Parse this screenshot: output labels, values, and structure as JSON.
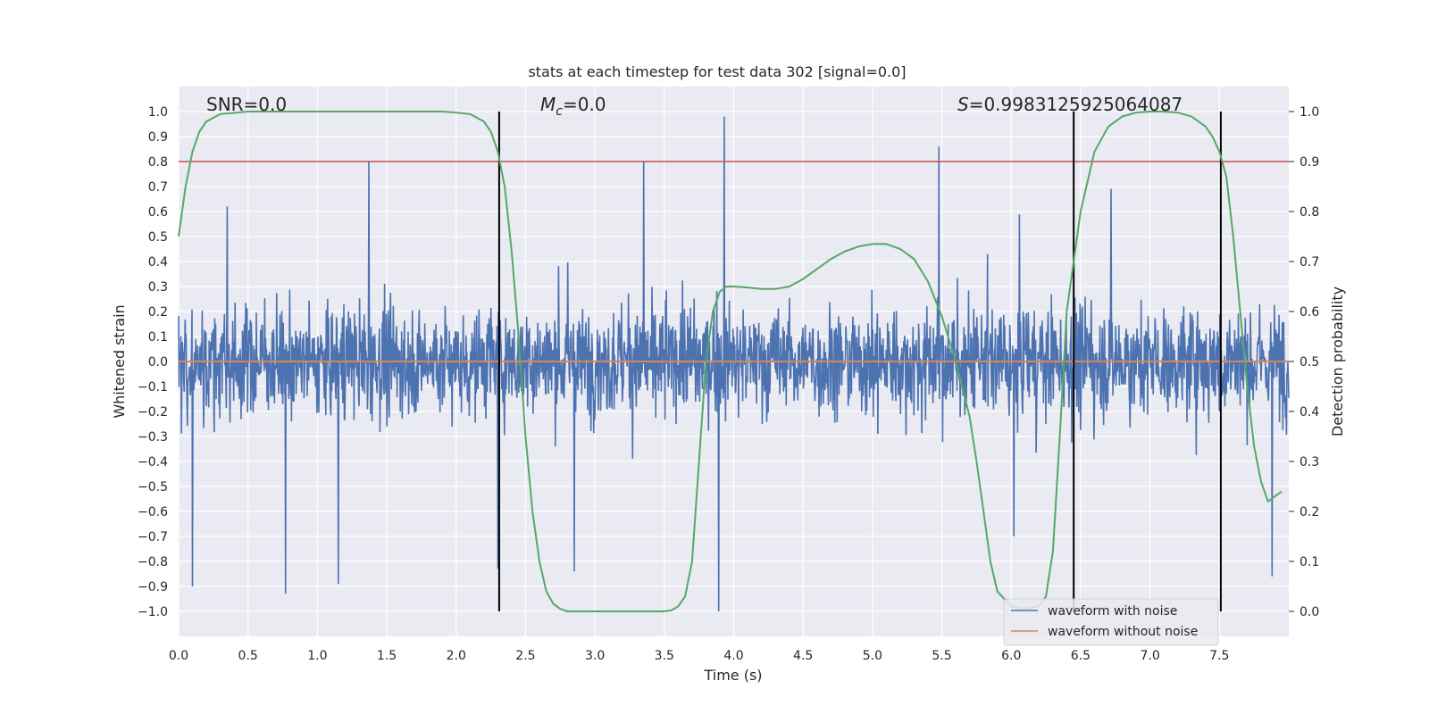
{
  "chart_data": {
    "type": "line",
    "title": "stats at each timestep for test data 302 [signal=0.0]",
    "xlabel": "Time (s)",
    "ylabel": "Whitened strain",
    "y2label": "Detection probability",
    "xlim": [
      0.0,
      8.0
    ],
    "ylim": [
      -1.1,
      1.1
    ],
    "y2lim": [
      -0.05,
      1.05
    ],
    "xticks": [
      0.0,
      0.5,
      1.0,
      1.5,
      2.0,
      2.5,
      3.0,
      3.5,
      4.0,
      4.5,
      5.0,
      5.5,
      6.0,
      6.5,
      7.0,
      7.5
    ],
    "xtick_labels": [
      "0.0",
      "0.5",
      "1.0",
      "1.5",
      "2.0",
      "2.5",
      "3.0",
      "3.5",
      "4.0",
      "4.5",
      "5.0",
      "5.5",
      "6.0",
      "6.5",
      "7.0",
      "7.5"
    ],
    "yticks": [
      -1.0,
      -0.9,
      -0.8,
      -0.7,
      -0.6,
      -0.5,
      -0.4,
      -0.3,
      -0.2,
      -0.1,
      0.0,
      0.1,
      0.2,
      0.3,
      0.4,
      0.5,
      0.6,
      0.7,
      0.8,
      0.9,
      1.0
    ],
    "ytick_labels": [
      "−1.0",
      "−0.9",
      "−0.8",
      "−0.7",
      "−0.6",
      "−0.5",
      "−0.4",
      "−0.3",
      "−0.2",
      "−0.1",
      "0.0",
      "0.1",
      "0.2",
      "0.3",
      "0.4",
      "0.5",
      "0.6",
      "0.7",
      "0.8",
      "0.9",
      "1.0"
    ],
    "y2ticks": [
      0.0,
      0.1,
      0.2,
      0.3,
      0.4,
      0.5,
      0.6,
      0.7,
      0.8,
      0.9,
      1.0
    ],
    "y2tick_labels": [
      "0.0",
      "0.1",
      "0.2",
      "0.3",
      "0.4",
      "0.5",
      "0.6",
      "0.7",
      "0.8",
      "0.9",
      "1.0"
    ],
    "annotations": {
      "snr": "SNR=0.0",
      "mc_symbol": "M",
      "mc_sub": "c",
      "mc_value": "=0.0",
      "s_symbol": "S",
      "s_value": "=0.9983125925064087"
    },
    "noise_envelope": {
      "approx_bulk_amplitude": 0.38,
      "spikes": [
        {
          "t": 0.1,
          "v": -0.9
        },
        {
          "t": 0.35,
          "v": 0.62
        },
        {
          "t": 0.77,
          "v": -0.93
        },
        {
          "t": 1.37,
          "v": 0.8
        },
        {
          "t": 1.15,
          "v": -0.89
        },
        {
          "t": 2.3,
          "v": -0.83
        },
        {
          "t": 2.85,
          "v": -0.84
        },
        {
          "t": 3.35,
          "v": 0.8
        },
        {
          "t": 3.93,
          "v": 0.98
        },
        {
          "t": 3.89,
          "v": -1.0
        },
        {
          "t": 5.48,
          "v": 0.86
        },
        {
          "t": 6.02,
          "v": -0.7
        },
        {
          "t": 6.72,
          "v": 0.69
        },
        {
          "t": 7.88,
          "v": -0.86
        }
      ]
    },
    "series": [
      {
        "name": "waveform with noise",
        "color": "#4c72b0",
        "kind": "noise"
      },
      {
        "name": "waveform without noise",
        "color": "#dd8452",
        "kind": "flat",
        "value": 0.0
      },
      {
        "name": "detection probability",
        "color": "#55a868",
        "axis": "right",
        "x": [
          0.0,
          0.05,
          0.1,
          0.15,
          0.2,
          0.3,
          0.5,
          1.0,
          1.5,
          1.9,
          2.0,
          2.1,
          2.2,
          2.25,
          2.3,
          2.35,
          2.4,
          2.45,
          2.5,
          2.55,
          2.6,
          2.65,
          2.7,
          2.75,
          2.8,
          3.0,
          3.4,
          3.5,
          3.55,
          3.6,
          3.65,
          3.7,
          3.75,
          3.8,
          3.85,
          3.9,
          3.95,
          4.0,
          4.1,
          4.2,
          4.3,
          4.4,
          4.5,
          4.6,
          4.7,
          4.8,
          4.9,
          5.0,
          5.1,
          5.2,
          5.3,
          5.4,
          5.5,
          5.6,
          5.7,
          5.75,
          5.8,
          5.85,
          5.9,
          6.0,
          6.1,
          6.2,
          6.25,
          6.3,
          6.35,
          6.4,
          6.5,
          6.6,
          6.7,
          6.8,
          6.9,
          7.0,
          7.1,
          7.2,
          7.3,
          7.4,
          7.45,
          7.5,
          7.55,
          7.6,
          7.65,
          7.7,
          7.75,
          7.8,
          7.85,
          7.9,
          7.95
        ],
        "values": [
          0.75,
          0.85,
          0.92,
          0.96,
          0.98,
          0.995,
          1.0,
          1.0,
          1.0,
          1.0,
          0.998,
          0.995,
          0.98,
          0.96,
          0.92,
          0.85,
          0.72,
          0.55,
          0.35,
          0.2,
          0.1,
          0.04,
          0.015,
          0.005,
          0.0,
          0.0,
          0.0,
          0.0,
          0.002,
          0.01,
          0.03,
          0.1,
          0.3,
          0.5,
          0.6,
          0.64,
          0.65,
          0.65,
          0.648,
          0.645,
          0.645,
          0.65,
          0.665,
          0.685,
          0.705,
          0.72,
          0.73,
          0.735,
          0.735,
          0.725,
          0.705,
          0.66,
          0.59,
          0.5,
          0.39,
          0.3,
          0.2,
          0.1,
          0.04,
          0.01,
          0.005,
          0.01,
          0.03,
          0.12,
          0.35,
          0.6,
          0.8,
          0.92,
          0.97,
          0.99,
          0.998,
          1.0,
          1.0,
          0.998,
          0.99,
          0.97,
          0.95,
          0.92,
          0.87,
          0.75,
          0.6,
          0.45,
          0.33,
          0.26,
          0.22,
          0.23,
          0.24
        ]
      }
    ],
    "hlines": [
      {
        "name": "threshold",
        "color": "#c44e52",
        "axis": "right",
        "value": 0.9
      }
    ],
    "vlines": [
      {
        "t": 2.31,
        "y2": [
          0.0,
          1.0
        ]
      },
      {
        "t": 6.45,
        "y2": [
          0.0,
          1.0
        ]
      },
      {
        "t": 7.51,
        "y2": [
          0.0,
          1.0
        ]
      }
    ],
    "legend": {
      "placement": "lower-right",
      "entries": [
        "waveform with noise",
        "waveform without noise"
      ],
      "colors": [
        "#4c72b0",
        "#dd8452"
      ]
    },
    "grid": true
  }
}
